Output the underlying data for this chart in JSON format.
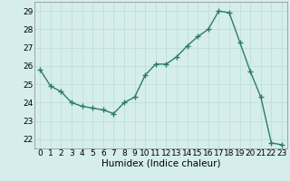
{
  "x": [
    0,
    1,
    2,
    3,
    4,
    5,
    6,
    7,
    8,
    9,
    10,
    11,
    12,
    13,
    14,
    15,
    16,
    17,
    18,
    19,
    20,
    21,
    22,
    23
  ],
  "y": [
    25.8,
    24.9,
    24.6,
    24.0,
    23.8,
    23.7,
    23.6,
    23.4,
    24.0,
    24.3,
    25.5,
    26.1,
    26.1,
    26.5,
    27.1,
    27.6,
    28.0,
    29.0,
    28.9,
    27.3,
    25.7,
    24.3,
    21.8,
    21.7
  ],
  "line_color": "#2d7a6e",
  "marker": "+",
  "bg_color": "#d5eeeb",
  "grid_color": "#c0deda",
  "xlabel": "Humidex (Indice chaleur)",
  "ylim": [
    21.5,
    29.5
  ],
  "yticks": [
    22,
    23,
    24,
    25,
    26,
    27,
    28,
    29
  ],
  "xticks": [
    0,
    1,
    2,
    3,
    4,
    5,
    6,
    7,
    8,
    9,
    10,
    11,
    12,
    13,
    14,
    15,
    16,
    17,
    18,
    19,
    20,
    21,
    22,
    23
  ],
  "tick_label_fontsize": 6.5,
  "xlabel_fontsize": 7.5,
  "line_width": 1.0,
  "marker_size": 4,
  "marker_edge_width": 1.0
}
